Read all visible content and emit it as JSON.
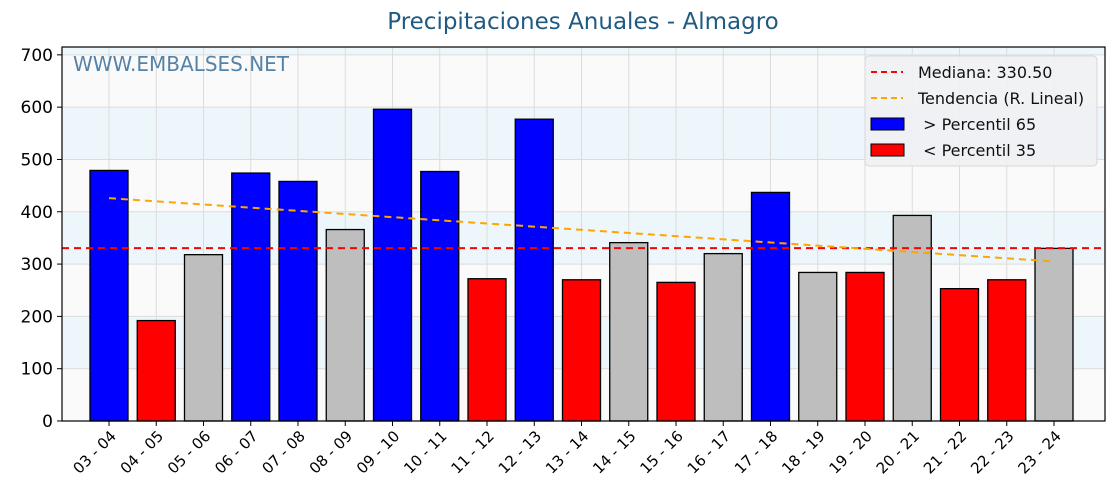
{
  "title": "Precipitaciones Anuales - Almagro",
  "watermark": "WWW.EMBALSES.NET",
  "legend": {
    "median_label": "Mediana: 330.50",
    "trend_label": "Tendencia (R. Lineal)",
    "high_label": " > Percentil 65",
    "low_label": " < Percentil 35"
  },
  "colors": {
    "high": "#0000ff",
    "low": "#ff0000",
    "normal": "#bebebe",
    "median": "#ff0000",
    "trend": "#ffa500",
    "title": "#1f5a82",
    "watermark": "#5583a8"
  },
  "chart_data": {
    "type": "bar",
    "title": "Precipitaciones Anuales - Almagro",
    "xlabel": "",
    "ylabel": "",
    "ylim": [
      0,
      715
    ],
    "yticks": [
      0,
      100,
      200,
      300,
      400,
      500,
      600,
      700
    ],
    "grid": true,
    "legend_position": "upper right",
    "categories": [
      "03 - 04",
      "04 - 05",
      "05 - 06",
      "06 - 07",
      "07 - 08",
      "08 - 09",
      "09 - 10",
      "10 - 11",
      "11 - 12",
      "12 - 13",
      "13 - 14",
      "14 - 15",
      "15 - 16",
      "16 - 17",
      "17 - 18",
      "18 - 19",
      "19 - 20",
      "20 - 21",
      "21 - 22",
      "22 - 23",
      "23 - 24"
    ],
    "values": [
      479,
      192,
      318,
      474,
      458,
      366,
      596,
      477,
      272,
      577,
      270,
      341,
      265,
      320,
      437,
      284,
      284,
      393,
      253,
      270,
      330
    ],
    "classes": [
      "high",
      "low",
      "normal",
      "high",
      "high",
      "normal",
      "high",
      "high",
      "low",
      "high",
      "low",
      "normal",
      "low",
      "normal",
      "high",
      "normal",
      "low",
      "normal",
      "low",
      "low",
      "normal"
    ],
    "median": 330.5,
    "trend": {
      "start": 426,
      "end": 305
    },
    "annotations": [
      "WWW.EMBALSES.NET"
    ]
  }
}
